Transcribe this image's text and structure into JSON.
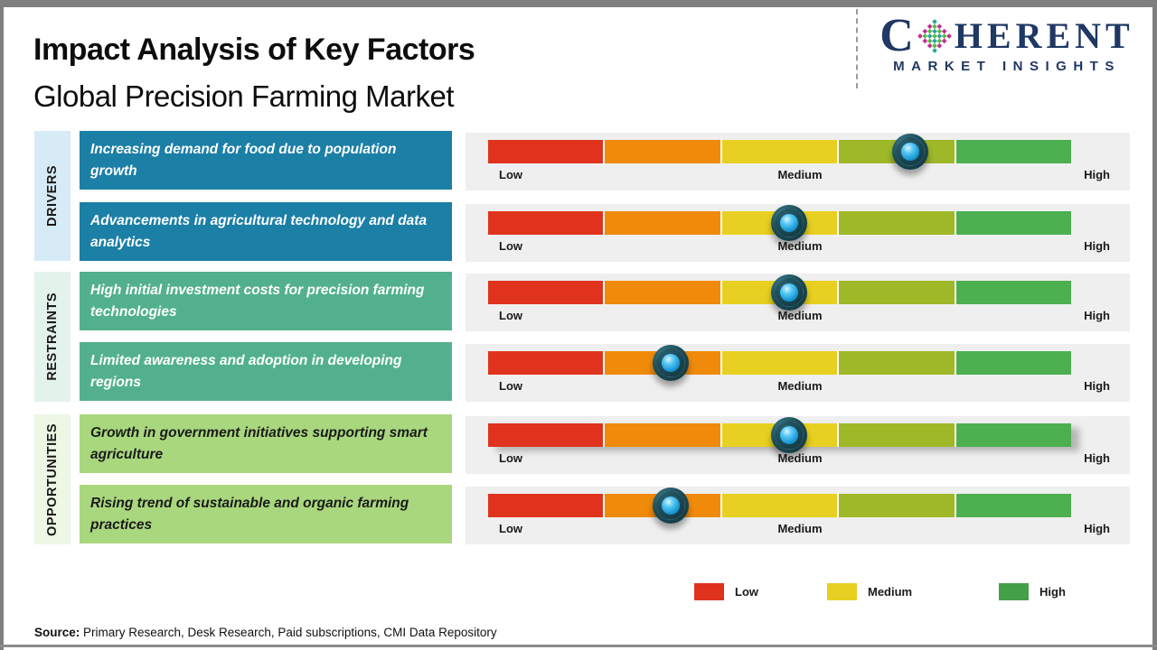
{
  "page": {
    "title": "Impact Analysis of Key Factors",
    "subtitle": "Global Precision Farming Market",
    "source_label": "Source:",
    "source_text": " Primary Research, Desk Research, Paid subscriptions, CMI Data Repository"
  },
  "logo": {
    "name_prefix": "C",
    "name_suffix": "HERENT",
    "tagline": "MARKET INSIGHTS",
    "brand_color": "#1F3864",
    "globe_dot_colors": [
      "#29A3A0",
      "#5CB846",
      "#C52C91"
    ]
  },
  "categories": [
    {
      "label": "DRIVERS",
      "bg": "#D6EBF5"
    },
    {
      "label": "RESTRAINTS",
      "bg": "#E4F2EC"
    },
    {
      "label": "OPPORTUNITIES",
      "bg": "#EDF7E4"
    }
  ],
  "scale": {
    "labels": {
      "low": "Low",
      "medium": "Medium",
      "high": "High"
    },
    "segment_colors": [
      "#E0331E",
      "#F08A0B",
      "#E7D021",
      "#9EB827",
      "#4CAF50"
    ]
  },
  "rows": [
    {
      "category": "DRIVERS",
      "text": "Increasing demand for food due to population growth",
      "box_color": "#1B7FA6",
      "text_color": "#FFFFFF",
      "marker_pct": 72.4,
      "shadow": false
    },
    {
      "category": "DRIVERS",
      "text": "Advancements in agricultural technology and data analytics",
      "box_color": "#1B7FA6",
      "text_color": "#FFFFFF",
      "marker_pct": 51.6,
      "shadow": false
    },
    {
      "category": "RESTRAINTS",
      "text": "High initial investment costs for precision farming technologies",
      "box_color": "#52B18C",
      "text_color": "#FFFFFF",
      "marker_pct": 51.6,
      "shadow": false
    },
    {
      "category": "RESTRAINTS",
      "text": "Limited awareness and adoption in developing regions",
      "box_color": "#52B18C",
      "text_color": "#FFFFFF",
      "marker_pct": 31.3,
      "shadow": false
    },
    {
      "category": "OPPORTUNITIES",
      "text": "Growth in government initiatives supporting smart agriculture",
      "box_color": "#A9D77E",
      "text_color": "#1A1A1A",
      "marker_pct": 51.6,
      "shadow": true
    },
    {
      "category": "OPPORTUNITIES",
      "text": "Rising trend of sustainable and organic farming practices",
      "box_color": "#A9D77E",
      "text_color": "#1A1A1A",
      "marker_pct": 31.3,
      "shadow": false
    }
  ],
  "legend": [
    {
      "label": "Low",
      "color": "#E0331E"
    },
    {
      "label": "Medium",
      "color": "#E7D021"
    },
    {
      "label": "High",
      "color": "#43A047"
    }
  ],
  "chart_data": {
    "type": "scatter",
    "title": "Impact Analysis of Key Factors",
    "subtitle": "Global Precision Farming Market",
    "x_scale": {
      "min": 0,
      "max": 100,
      "tick_labels": [
        "Low",
        "Medium",
        "High"
      ],
      "segments": 5
    },
    "categories": [
      "Increasing demand for food due to population growth",
      "Advancements in agricultural technology and data analytics",
      "High initial investment costs for precision farming technologies",
      "Limited awareness and adoption in developing regions",
      "Growth in government initiatives supporting smart agriculture",
      "Rising trend of sustainable and organic farming practices"
    ],
    "groups": [
      "DRIVERS",
      "DRIVERS",
      "RESTRAINTS",
      "RESTRAINTS",
      "OPPORTUNITIES",
      "OPPORTUNITIES"
    ],
    "values_pct": [
      72.4,
      51.6,
      51.6,
      31.3,
      51.6,
      31.3
    ],
    "impact_levels": [
      "Medium-High",
      "Medium",
      "Medium",
      "Low-Medium",
      "Medium",
      "Low-Medium"
    ],
    "legend_position": "bottom",
    "grid": false
  }
}
